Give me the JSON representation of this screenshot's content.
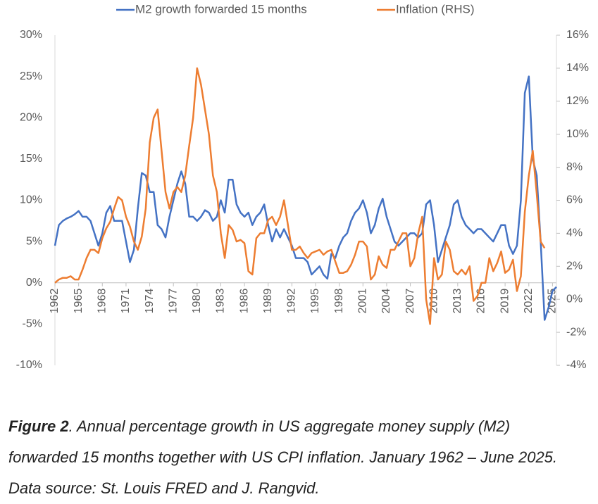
{
  "chart_data": {
    "type": "line",
    "caption_label": "Figure 2",
    "caption_text": ". Annual percentage growth in US aggregate money supply (M2) forwarded 15 months together with US CPI inflation. January 1962 – June 2025. Data source: St. Louis FRED and J. Rangvid.",
    "x": [
      1962,
      1962.5,
      1963,
      1963.5,
      1964,
      1964.5,
      1965,
      1965.5,
      1966,
      1966.5,
      1967,
      1967.5,
      1968,
      1968.5,
      1969,
      1969.5,
      1970,
      1970.5,
      1971,
      1971.5,
      1972,
      1972.5,
      1973,
      1973.5,
      1974,
      1974.5,
      1975,
      1975.5,
      1976,
      1976.5,
      1977,
      1977.5,
      1978,
      1978.5,
      1979,
      1979.5,
      1980,
      1980.5,
      1981,
      1981.5,
      1982,
      1982.5,
      1983,
      1983.5,
      1984,
      1984.5,
      1985,
      1985.5,
      1986,
      1986.5,
      1987,
      1987.5,
      1988,
      1988.5,
      1989,
      1989.5,
      1990,
      1990.5,
      1991,
      1991.5,
      1992,
      1992.5,
      1993,
      1993.5,
      1994,
      1994.5,
      1995,
      1995.5,
      1996,
      1996.5,
      1997,
      1997.5,
      1998,
      1998.5,
      1999,
      1999.5,
      2000,
      2000.5,
      2001,
      2001.5,
      2002,
      2002.5,
      2003,
      2003.5,
      2004,
      2004.5,
      2005,
      2005.5,
      2006,
      2006.5,
      2007,
      2007.5,
      2008,
      2008.5,
      2009,
      2009.5,
      2010,
      2010.5,
      2011,
      2011.5,
      2012,
      2012.5,
      2013,
      2013.5,
      2014,
      2014.5,
      2015,
      2015.5,
      2016,
      2016.5,
      2017,
      2017.5,
      2018,
      2018.5,
      2019,
      2019.5,
      2020,
      2020.5,
      2021,
      2021.5,
      2022,
      2022.5,
      2023,
      2023.5,
      2024,
      2024.5,
      2025,
      2025.5
    ],
    "series": [
      {
        "name": "M2 growth forwarded 15 months",
        "color": "#4472c4",
        "axis": "y",
        "values": [
          4.5,
          7,
          7.5,
          7.8,
          8,
          8.3,
          8.7,
          8,
          8,
          7.5,
          6,
          4.5,
          6,
          8.5,
          9.3,
          7.5,
          7.5,
          7.5,
          5,
          2.5,
          4,
          9,
          13.3,
          13,
          11,
          11,
          7,
          6.5,
          5.5,
          8,
          10,
          12,
          13.5,
          12,
          8,
          8,
          7.5,
          8,
          8.8,
          8.5,
          7.5,
          8,
          10,
          8.5,
          12.5,
          12.5,
          9.5,
          8.5,
          8,
          8.5,
          7,
          8,
          8.5,
          9.5,
          7,
          5,
          6.5,
          5.5,
          6.5,
          5.5,
          4.5,
          3,
          3,
          3,
          2.5,
          1,
          1.5,
          2,
          1,
          0.5,
          3.5,
          3,
          4.5,
          5.5,
          6,
          7.5,
          8.5,
          9,
          10,
          8.5,
          6,
          7,
          9,
          10.2,
          8,
          6.5,
          5,
          4.5,
          5,
          5.5,
          6,
          6,
          5.5,
          6,
          9.5,
          10,
          7,
          2.5,
          4,
          5.5,
          7,
          9.5,
          10,
          8,
          7,
          6.5,
          6,
          6.5,
          6.5,
          6,
          5.5,
          5,
          6,
          7,
          7,
          4.5,
          3.5,
          4.5,
          10,
          23,
          25,
          15,
          13,
          5,
          -4.5,
          -3,
          -1,
          -0.5
        ]
      },
      {
        "name": "Inflation (RHS)",
        "color": "#ed7d31",
        "axis": "y2",
        "values": [
          1,
          1.2,
          1.3,
          1.3,
          1.4,
          1.2,
          1.2,
          1.8,
          2.5,
          3,
          3,
          2.8,
          3.7,
          4.3,
          4.7,
          5.5,
          6.2,
          6,
          5,
          4.4,
          3.5,
          3,
          3.8,
          5.5,
          9.5,
          11,
          11.5,
          9,
          6.5,
          5.5,
          6.5,
          6.8,
          6.5,
          7.5,
          9.3,
          11,
          14,
          13,
          11.5,
          10,
          7.5,
          6.5,
          4,
          2.5,
          4.5,
          4.2,
          3.5,
          3.6,
          3.4,
          1.7,
          1.5,
          3.7,
          4,
          4,
          4.8,
          5,
          4.5,
          5,
          6,
          4.5,
          3,
          3,
          3.2,
          2.8,
          2.5,
          2.8,
          2.9,
          3,
          2.7,
          2.9,
          3,
          2.3,
          1.6,
          1.6,
          1.7,
          2.1,
          2.7,
          3.5,
          3.5,
          3.2,
          1.2,
          1.5,
          2.6,
          2.1,
          1.9,
          3,
          3,
          3.5,
          4,
          4,
          2,
          2.5,
          4,
          5,
          0,
          -1.5,
          2.5,
          1.2,
          1.5,
          3.5,
          3,
          1.7,
          1.5,
          1.8,
          1.5,
          2,
          -0.1,
          0.2,
          1,
          1,
          2.5,
          1.7,
          2.2,
          2.9,
          1.6,
          1.8,
          2.4,
          0.5,
          1.4,
          5.3,
          7.5,
          9,
          6.4,
          3.5,
          3.1,
          null,
          null,
          null
        ]
      }
    ],
    "xlim": [
      1962,
      2025.5
    ],
    "xticks": [
      1962,
      1965,
      1968,
      1971,
      1974,
      1977,
      1980,
      1983,
      1986,
      1989,
      1992,
      1995,
      1998,
      2001,
      2004,
      2007,
      2010,
      2013,
      2016,
      2019,
      2022,
      2025
    ],
    "ylim": [
      -10,
      30
    ],
    "yticks": [
      {
        "value": -10,
        "label": "-10%"
      },
      {
        "value": -5,
        "label": "-5%"
      },
      {
        "value": 0,
        "label": "0%"
      },
      {
        "value": 5,
        "label": "5%"
      },
      {
        "value": 10,
        "label": "10%"
      },
      {
        "value": 15,
        "label": "15%"
      },
      {
        "value": 20,
        "label": "20%"
      },
      {
        "value": 25,
        "label": "25%"
      },
      {
        "value": 30,
        "label": "30%"
      }
    ],
    "y2lim": [
      -4,
      16
    ],
    "y2ticks": [
      {
        "value": -4,
        "label": "-4%"
      },
      {
        "value": -2,
        "label": "-2%"
      },
      {
        "value": 0,
        "label": "0%"
      },
      {
        "value": 2,
        "label": "2%"
      },
      {
        "value": 4,
        "label": "4%"
      },
      {
        "value": 6,
        "label": "6%"
      },
      {
        "value": 8,
        "label": "8%"
      },
      {
        "value": 10,
        "label": "10%"
      },
      {
        "value": 12,
        "label": "12%"
      },
      {
        "value": 14,
        "label": "14%"
      },
      {
        "value": 16,
        "label": "16%"
      }
    ],
    "grid": false,
    "legend": "top"
  }
}
